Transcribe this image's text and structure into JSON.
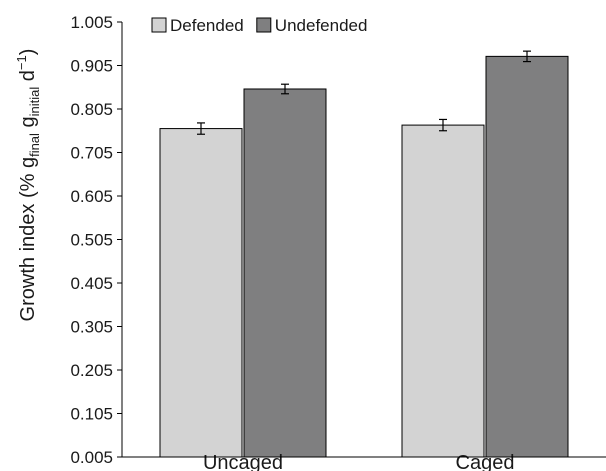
{
  "chart_data": {
    "type": "bar",
    "title": "",
    "xlabel": "",
    "ylabel": {
      "prefix": "Growth index (% g",
      "sub1": "final",
      "mid": " g",
      "sub2": "initial",
      "suffix": " d",
      "sup": "−1",
      "close": ")"
    },
    "categories": [
      "Uncaged",
      "Caged"
    ],
    "series": [
      {
        "name": "Defended",
        "color": "#d3d3d3",
        "values": [
          0.76,
          0.768
        ],
        "errors": [
          0.013,
          0.013
        ]
      },
      {
        "name": "Undefended",
        "color": "#7f7f80",
        "values": [
          0.851,
          0.926
        ],
        "errors": [
          0.011,
          0.012
        ]
      }
    ],
    "ylim": [
      0.005,
      1.005
    ],
    "yticks": [
      "1.005",
      "0.905",
      "0.805",
      "0.705",
      "0.605",
      "0.505",
      "0.405",
      "0.305",
      "0.205",
      "0.105",
      "0.005"
    ],
    "legend_position": "top-left",
    "grid": false
  }
}
